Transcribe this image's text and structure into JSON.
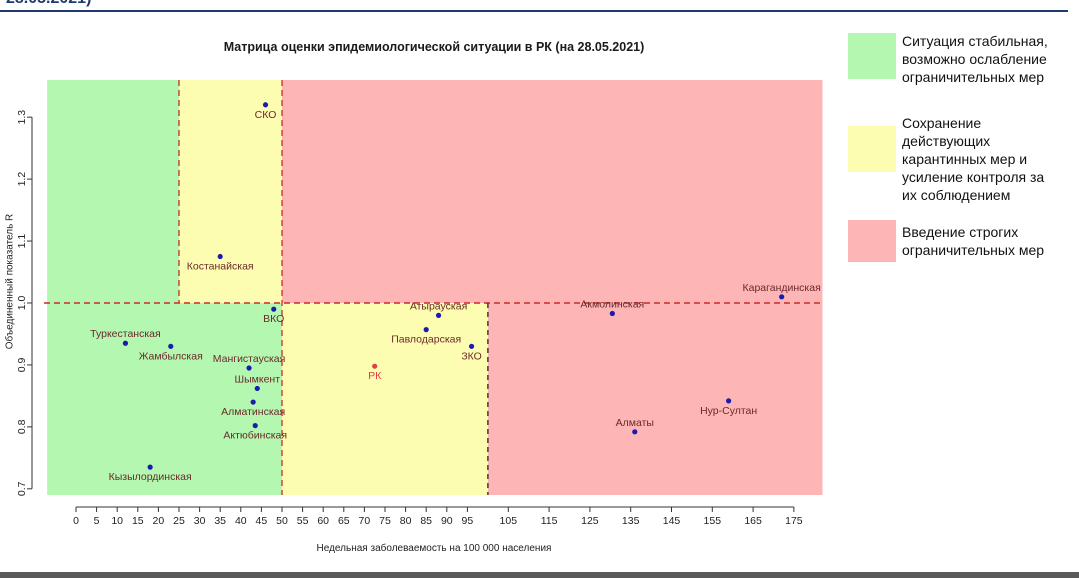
{
  "header": {
    "partial_text": "28.05.2021)"
  },
  "chart_data": {
    "type": "scatter",
    "title": "Матрица оценки эпидемиологической ситуации в РК (на 28.05.2021)",
    "xlabel": "Недельная заболеваемость на 100 000 населения",
    "ylabel": "Объединенный показатель R",
    "x_ticks": [
      "0",
      "5",
      "10",
      "15",
      "20",
      "25",
      "30",
      "35",
      "40",
      "45",
      "50",
      "55",
      "60",
      "65",
      "70",
      "75",
      "80",
      "85",
      "90",
      "95",
      "105",
      "115",
      "125",
      "135",
      "145",
      "155",
      "165",
      "175"
    ],
    "y_ticks": [
      "0.7",
      "0.8",
      "0.9",
      "1.0",
      "1.1",
      "1.2",
      "1.3"
    ],
    "ylim": [
      0.69,
      1.36
    ],
    "threshold_x": [
      25,
      50,
      100
    ],
    "threshold_y": 1.0,
    "zones": [
      {
        "x_from": -7,
        "x_to": 50,
        "y_from": 0.69,
        "y_to": 1.0,
        "color": "#b3f7b0"
      },
      {
        "x_from": -7,
        "x_to": 25,
        "y_from": 1.0,
        "y_to": 1.36,
        "color": "#b3f7b0"
      },
      {
        "x_from": 25,
        "x_to": 50,
        "y_from": 1.0,
        "y_to": 1.36,
        "color": "#fdfdb1"
      },
      {
        "x_from": 50,
        "x_to": 100,
        "y_from": 0.69,
        "y_to": 1.0,
        "color": "#fdfdb1"
      },
      {
        "x_from": 50,
        "x_to": 182,
        "y_from": 1.0,
        "y_to": 1.36,
        "color": "#fdb5b5"
      },
      {
        "x_from": 100,
        "x_to": 182,
        "y_from": 0.69,
        "y_to": 1.0,
        "color": "#fdb5b5"
      }
    ],
    "points": [
      {
        "label": "СКО",
        "x": 46,
        "y": 1.32,
        "label_pos": "below"
      },
      {
        "label": "Костанайская",
        "x": 35,
        "y": 1.075,
        "label_pos": "below"
      },
      {
        "label": "ВКО",
        "x": 48,
        "y": 0.99,
        "label_pos": "below"
      },
      {
        "label": "Туркестанская",
        "x": 12,
        "y": 0.935,
        "label_pos": "above"
      },
      {
        "label": "Жамбылская",
        "x": 23,
        "y": 0.93,
        "label_pos": "below"
      },
      {
        "label": "Мангистауская",
        "x": 42,
        "y": 0.895,
        "label_pos": "above"
      },
      {
        "label": "Шымкент",
        "x": 44,
        "y": 0.862,
        "label_pos": "above"
      },
      {
        "label": "Алматинская",
        "x": 43,
        "y": 0.84,
        "label_pos": "below"
      },
      {
        "label": "Актюбинская",
        "x": 43.5,
        "y": 0.802,
        "label_pos": "below"
      },
      {
        "label": "Кызылординская",
        "x": 18,
        "y": 0.735,
        "label_pos": "below"
      },
      {
        "label": "РК",
        "x": 72.5,
        "y": 0.898,
        "label_pos": "below",
        "highlight": true
      },
      {
        "label": "Атырауская",
        "x": 88,
        "y": 0.98,
        "label_pos": "above"
      },
      {
        "label": "Павлодарская",
        "x": 85,
        "y": 0.957,
        "label_pos": "below"
      },
      {
        "label": "ЗКО",
        "x": 96,
        "y": 0.93,
        "label_pos": "below"
      },
      {
        "label": "Акмолинская",
        "x": 130.5,
        "y": 0.983,
        "label_pos": "above"
      },
      {
        "label": "Карагандинская",
        "x": 172,
        "y": 1.01,
        "label_pos": "above"
      },
      {
        "label": "Нур-Султан",
        "x": 159,
        "y": 0.842,
        "label_pos": "below"
      },
      {
        "label": "Алматы",
        "x": 136,
        "y": 0.792,
        "label_pos": "above"
      }
    ],
    "point_color": "#1b1bb0",
    "highlight_color": "#e04040",
    "label_color": "#6b2a2a",
    "threshold_color": "#cc2a2a",
    "grid": false
  },
  "legend": [
    {
      "color": "#b3f7b0",
      "lines": [
        "Ситуация стабильная,",
        "возможно ослабление",
        "ограничительных мер"
      ]
    },
    {
      "color": "#fdfdb1",
      "lines": [
        "Сохранение",
        "действующих",
        "карантинных мер и",
        "усиление контроля за",
        "их соблюдением"
      ]
    },
    {
      "color": "#fdb5b5",
      "lines": [
        "Введение строгих",
        "ограничительных мер"
      ]
    }
  ]
}
